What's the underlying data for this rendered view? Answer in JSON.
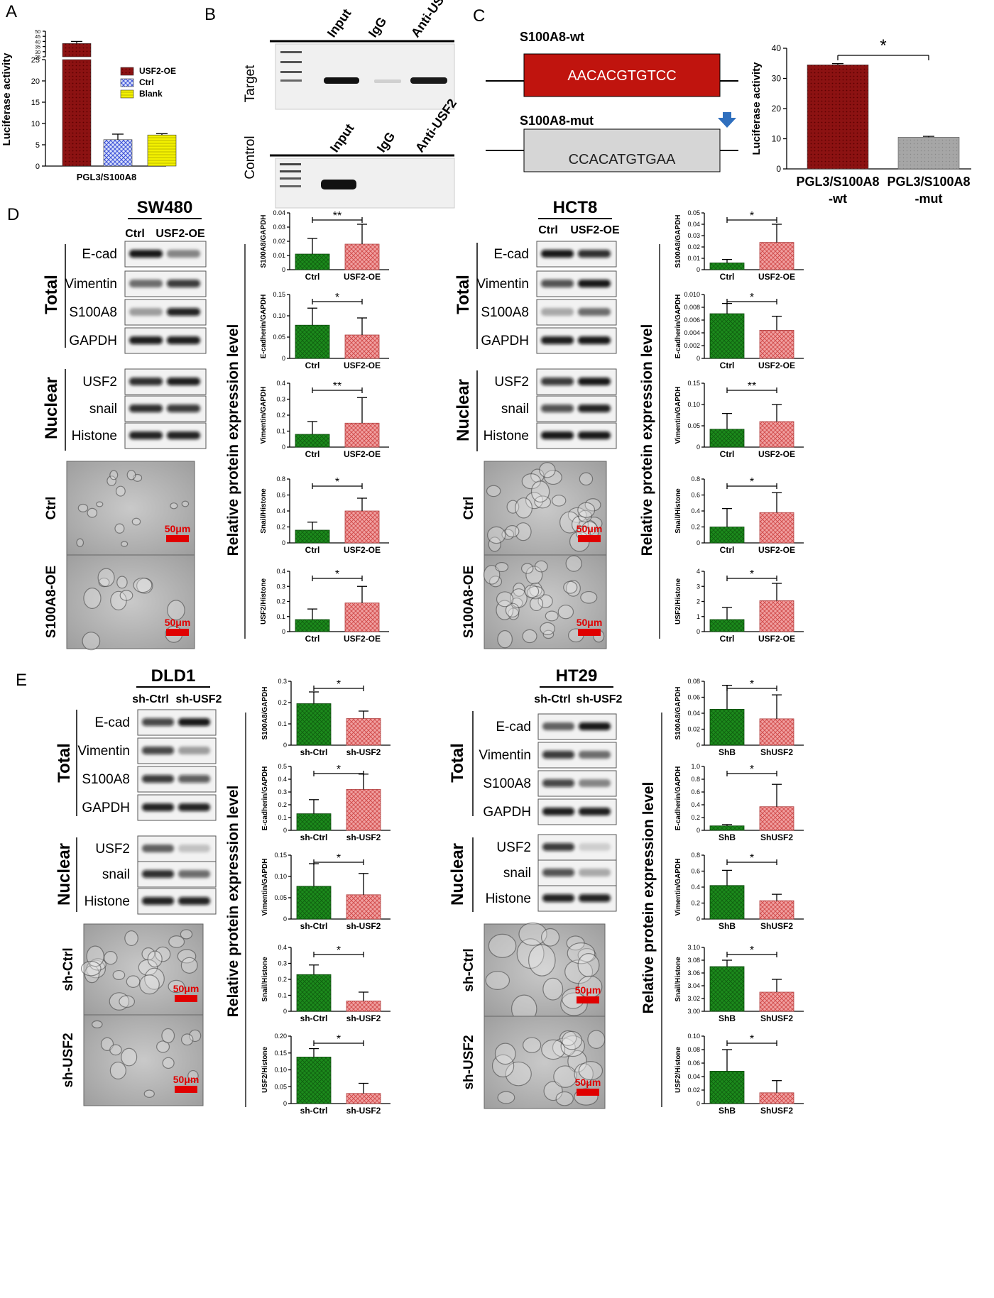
{
  "panel_labels": {
    "A": "A",
    "B": "B",
    "C": "C",
    "D": "D",
    "E": "E"
  },
  "colors": {
    "green": "#1c8a1c",
    "pink": "#e88888",
    "darkred": "#8c1212",
    "blue": "#8fa6e8",
    "yellow": "#f2f000",
    "grey": "#a0a0a0",
    "scale": "#e00000"
  },
  "panel_b": {
    "lanes": [
      "Input",
      "IgG",
      "Anti-USF2"
    ],
    "rows": [
      "Target",
      "Control"
    ]
  },
  "panel_c": {
    "wt_label": "S100A8-wt",
    "wt_seq": "AACACGTGTCC",
    "mut_label": "S100A8-mut",
    "mut_seq": "CCACATGTGAA"
  },
  "blots": {
    "total_label": "Total",
    "nuclear_label": "Nuclear",
    "total_rows": [
      "E-cad",
      "Vimentin",
      "S100A8",
      "GAPDH"
    ],
    "nuclear_rows": [
      "USF2",
      "snail",
      "Histone"
    ]
  },
  "cell_lines": {
    "sw480": {
      "name": "SW480",
      "lanes": [
        "Ctrl",
        "USF2-OE"
      ],
      "micro": [
        "Ctrl",
        "S100A8-OE"
      ],
      "scale": "50μm"
    },
    "hct8": {
      "name": "HCT8",
      "lanes": [
        "Ctrl",
        "USF2-OE"
      ],
      "micro": [
        "Ctrl",
        "S100A8-OE"
      ],
      "scale": "50μm"
    },
    "dld1": {
      "name": "DLD1",
      "lanes": [
        "sh-Ctrl",
        "sh-USF2"
      ],
      "micro": [
        "sh-Ctrl",
        "sh-USF2"
      ],
      "scale": "50μm"
    },
    "ht29": {
      "name": "HT29",
      "lanes": [
        "sh-Ctrl",
        "sh-USF2"
      ],
      "micro": [
        "sh-Ctrl",
        "sh-USF2"
      ],
      "scale": "50μm"
    }
  },
  "rel_label": "Relative protein expression level",
  "chart_data": [
    {
      "id": "A",
      "type": "bar",
      "categories": [
        "PGL3/S100A8"
      ],
      "series": [
        {
          "name": "USF2-OE",
          "values": [
            38
          ],
          "err": [
            2
          ]
        },
        {
          "name": "Ctrl",
          "values": [
            6.2
          ],
          "err": [
            1.3
          ]
        },
        {
          "name": "Blank",
          "values": [
            7.3
          ],
          "err": [
            0.3
          ]
        }
      ],
      "ylabel": "Luciferase activity",
      "yticks": [
        0,
        5,
        10,
        15,
        20,
        25
      ],
      "break_ticks": [
        25,
        30,
        35,
        40,
        45,
        50
      ],
      "legend": "right"
    },
    {
      "id": "C",
      "type": "bar",
      "categories": [
        "PGL3/S100A8-wt",
        "PGL3/S100A8-mut"
      ],
      "cat_lines": [
        [
          "PGL3/S100A8",
          "-wt"
        ],
        [
          "PGL3/S100A8",
          "-mut"
        ]
      ],
      "values": [
        34.5,
        10.5
      ],
      "err": [
        0.4,
        0.3
      ],
      "ylabel": "Luciferase activity",
      "ylim": [
        0,
        40
      ],
      "yticks": [
        0,
        10,
        20,
        30,
        40
      ],
      "sig": "*"
    },
    {
      "id": "D-SW480-S100A8",
      "type": "bar",
      "categories": [
        "Ctrl",
        "USF2-OE"
      ],
      "values": [
        0.011,
        0.018
      ],
      "err": [
        0.011,
        0.014
      ],
      "ylabel": "S100A8/GAPDH",
      "ylim": [
        0,
        0.04
      ],
      "yticks": [
        0,
        0.01,
        0.02,
        0.03,
        0.04
      ],
      "sig": "**"
    },
    {
      "id": "D-SW480-Ecad",
      "type": "bar",
      "categories": [
        "Ctrl",
        "USF2-OE"
      ],
      "values": [
        0.078,
        0.055
      ],
      "err": [
        0.04,
        0.04
      ],
      "ylabel": "E-cadherin/GAPDH",
      "ylim": [
        0,
        0.15
      ],
      "yticks": [
        0,
        0.05,
        0.1,
        0.15
      ],
      "sig": "*"
    },
    {
      "id": "D-SW480-Vim",
      "type": "bar",
      "categories": [
        "Ctrl",
        "USF2-OE"
      ],
      "values": [
        0.08,
        0.15
      ],
      "err": [
        0.08,
        0.16
      ],
      "ylabel": "Vimentin/GAPDH",
      "ylim": [
        0,
        0.4
      ],
      "yticks": [
        0,
        0.1,
        0.2,
        0.3,
        0.4
      ],
      "sig": "**"
    },
    {
      "id": "D-SW480-Snail",
      "type": "bar",
      "categories": [
        "Ctrl",
        "USF2-OE"
      ],
      "values": [
        0.16,
        0.4
      ],
      "err": [
        0.1,
        0.16
      ],
      "ylabel": "Snail/Histone",
      "ylim": [
        0,
        0.8
      ],
      "yticks": [
        0,
        0.2,
        0.4,
        0.6,
        0.8
      ],
      "sig": "*"
    },
    {
      "id": "D-SW480-USF2",
      "type": "bar",
      "categories": [
        "Ctrl",
        "USF2-OE"
      ],
      "values": [
        0.08,
        0.19
      ],
      "err": [
        0.07,
        0.11
      ],
      "ylabel": "USF2/Histone",
      "ylim": [
        0,
        0.4
      ],
      "yticks": [
        0,
        0.1,
        0.2,
        0.3,
        0.4
      ],
      "sig": "*"
    },
    {
      "id": "D-HCT8-S100A8",
      "type": "bar",
      "categories": [
        "Ctrl",
        "USF2-OE"
      ],
      "values": [
        0.006,
        0.024
      ],
      "err": [
        0.003,
        0.016
      ],
      "ylabel": "S100A8/GAPDH",
      "ylim": [
        0,
        0.05
      ],
      "yticks": [
        0,
        0.01,
        0.02,
        0.03,
        0.04,
        0.05
      ],
      "sig": "*"
    },
    {
      "id": "D-HCT8-Ecad",
      "type": "bar",
      "categories": [
        "Ctrl",
        "USF2-OE"
      ],
      "values": [
        0.007,
        0.0044
      ],
      "err": [
        0.0016,
        0.0022
      ],
      "ylabel": "E-cadherin/GAPDH",
      "ylim": [
        0,
        0.01
      ],
      "yticks": [
        0,
        0.002,
        0.004,
        0.006,
        0.008,
        0.01
      ],
      "sig": "*"
    },
    {
      "id": "D-HCT8-Vim",
      "type": "bar",
      "categories": [
        "Ctrl",
        "USF2-OE"
      ],
      "values": [
        0.042,
        0.06
      ],
      "err": [
        0.037,
        0.04
      ],
      "ylabel": "Vimentin/GAPDH",
      "ylim": [
        0,
        0.15
      ],
      "yticks": [
        0,
        0.05,
        0.1,
        0.15
      ],
      "sig": "**"
    },
    {
      "id": "D-HCT8-Snail",
      "type": "bar",
      "categories": [
        "Ctrl",
        "USF2-OE"
      ],
      "values": [
        0.2,
        0.38
      ],
      "err": [
        0.23,
        0.25
      ],
      "ylabel": "Snail/Histone",
      "ylim": [
        0,
        0.8
      ],
      "yticks": [
        0,
        0.2,
        0.4,
        0.6,
        0.8
      ],
      "sig": "*"
    },
    {
      "id": "D-HCT8-USF2",
      "type": "bar",
      "categories": [
        "Ctrl",
        "USF2-OE"
      ],
      "values": [
        0.8,
        2.05
      ],
      "err": [
        0.8,
        1.15
      ],
      "ylabel": "USF2/Histone",
      "ylim": [
        0,
        4
      ],
      "yticks": [
        0,
        1,
        2,
        3,
        4
      ],
      "sig": "*"
    },
    {
      "id": "E-DLD1-S100A8",
      "type": "bar",
      "categories": [
        "sh-Ctrl",
        "sh-USF2"
      ],
      "values": [
        0.195,
        0.125
      ],
      "err": [
        0.055,
        0.035
      ],
      "ylabel": "S100A8/GAPDH",
      "ylim": [
        0,
        0.3
      ],
      "yticks": [
        0,
        0.1,
        0.2,
        0.3
      ],
      "sig": "*"
    },
    {
      "id": "E-DLD1-Ecad",
      "type": "bar",
      "categories": [
        "sh-Ctrl",
        "sh-USF2"
      ],
      "values": [
        0.13,
        0.32
      ],
      "err": [
        0.11,
        0.12
      ],
      "ylabel": "E-cadherin/GAPDH",
      "ylim": [
        0,
        0.5
      ],
      "yticks": [
        0,
        0.1,
        0.2,
        0.3,
        0.4,
        0.5
      ],
      "sig": "*"
    },
    {
      "id": "E-DLD1-Vim",
      "type": "bar",
      "categories": [
        "sh-Ctrl",
        "sh-USF2"
      ],
      "values": [
        0.077,
        0.057
      ],
      "err": [
        0.053,
        0.05
      ],
      "ylabel": "Vimentin/GAPDH",
      "ylim": [
        0,
        0.15
      ],
      "yticks": [
        0,
        0.05,
        0.1,
        0.15
      ],
      "sig": "*"
    },
    {
      "id": "E-DLD1-Snail",
      "type": "bar",
      "categories": [
        "sh-Ctrl",
        "sh-USF2"
      ],
      "values": [
        0.23,
        0.065
      ],
      "err": [
        0.06,
        0.055
      ],
      "ylabel": "Snail/Histone",
      "ylim": [
        0,
        0.4
      ],
      "yticks": [
        0,
        0.1,
        0.2,
        0.3,
        0.4
      ],
      "sig": "*"
    },
    {
      "id": "E-DLD1-USF2",
      "type": "bar",
      "categories": [
        "sh-Ctrl",
        "sh-USF2"
      ],
      "values": [
        0.138,
        0.03
      ],
      "err": [
        0.025,
        0.03
      ],
      "ylabel": "USF2/Histone",
      "ylim": [
        0,
        0.2
      ],
      "yticks": [
        0,
        0.05,
        0.1,
        0.15,
        0.2
      ],
      "sig": "*"
    },
    {
      "id": "E-HT29-S100A8",
      "type": "bar",
      "categories": [
        "ShB",
        "ShUSF2"
      ],
      "values": [
        0.045,
        0.033
      ],
      "err": [
        0.03,
        0.03
      ],
      "ylabel": "S100A8/GAPDH",
      "ylim": [
        0,
        0.08
      ],
      "yticks": [
        0,
        0.02,
        0.04,
        0.06,
        0.08
      ],
      "sig": "*"
    },
    {
      "id": "E-HT29-Ecad",
      "type": "bar",
      "categories": [
        "ShB",
        "ShUSF2"
      ],
      "values": [
        0.07,
        0.37
      ],
      "err": [
        0.02,
        0.35
      ],
      "ylabel": "E-cadherin/GAPDH",
      "ylim": [
        0,
        1
      ],
      "yticks": [
        0,
        0.2,
        0.4,
        0.6,
        0.8,
        1
      ],
      "sig": "*"
    },
    {
      "id": "E-HT29-Vim",
      "type": "bar",
      "categories": [
        "ShB",
        "ShUSF2"
      ],
      "values": [
        0.42,
        0.23
      ],
      "err": [
        0.19,
        0.08
      ],
      "ylabel": "Vimentin/GAPDH",
      "ylim": [
        0,
        0.8
      ],
      "yticks": [
        0,
        0.2,
        0.4,
        0.6,
        0.8
      ],
      "sig": "*"
    },
    {
      "id": "E-HT29-Snail",
      "type": "bar",
      "categories": [
        "ShB",
        "ShUSF2"
      ],
      "values": [
        3.07,
        3.03
      ],
      "err": [
        0.01,
        0.02
      ],
      "ylabel": "Snail/Histone",
      "ylim": [
        3,
        3.1
      ],
      "yticks": [
        3,
        3.02,
        3.04,
        3.06,
        3.08,
        3.1
      ],
      "sig": "*"
    },
    {
      "id": "E-HT29-USF2",
      "type": "bar",
      "categories": [
        "ShB",
        "ShUSF2"
      ],
      "values": [
        0.048,
        0.016
      ],
      "err": [
        0.032,
        0.018
      ],
      "ylabel": "USF2/Histone",
      "ylim": [
        0,
        0.1
      ],
      "yticks": [
        0,
        0.02,
        0.04,
        0.06,
        0.08,
        0.1
      ],
      "sig": "*"
    }
  ]
}
